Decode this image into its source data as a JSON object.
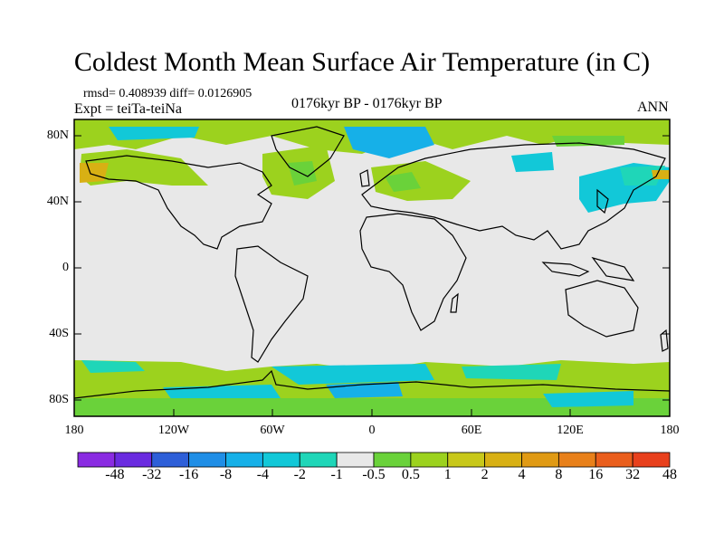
{
  "title": "Coldest Month Mean Surface Air Temperature (in C)",
  "stats_line": "rmsd= 0.408939 diff= 0.0126905",
  "expt_line": "Expt = teiTa-teiNa",
  "period": "0176kyr BP - 0176kyr BP",
  "season": "ANN",
  "lat_labels": [
    "80N",
    "40N",
    "0",
    "40S",
    "80S"
  ],
  "lon_labels": [
    "180",
    "120W",
    "60W",
    "0",
    "60E",
    "120E",
    "180"
  ],
  "colorbar": {
    "labels": [
      "-48",
      "-32",
      "-16",
      "-8",
      "-4",
      "-2",
      "-1",
      "-0.5",
      "0.5",
      "1",
      "2",
      "4",
      "8",
      "16",
      "32",
      "48"
    ],
    "colors": [
      "#8a2be2",
      "#6a2be0",
      "#2e5fd8",
      "#1f8ee6",
      "#16b0e8",
      "#12c8d8",
      "#1fd6b8",
      "#e8e8e8",
      "#6ad23a",
      "#9cd21e",
      "#c8c81a",
      "#d8b014",
      "#e09a14",
      "#e8801a",
      "#ea5e1c",
      "#e8401c"
    ]
  },
  "colors": {
    "neutral": "#e8e8e8",
    "green": "#9cd21e",
    "light_green": "#6ad23a",
    "cyan": "#12c8d8",
    "teal": "#1fd6b8",
    "orange": "#d8b014",
    "blue": "#16b0e8"
  }
}
